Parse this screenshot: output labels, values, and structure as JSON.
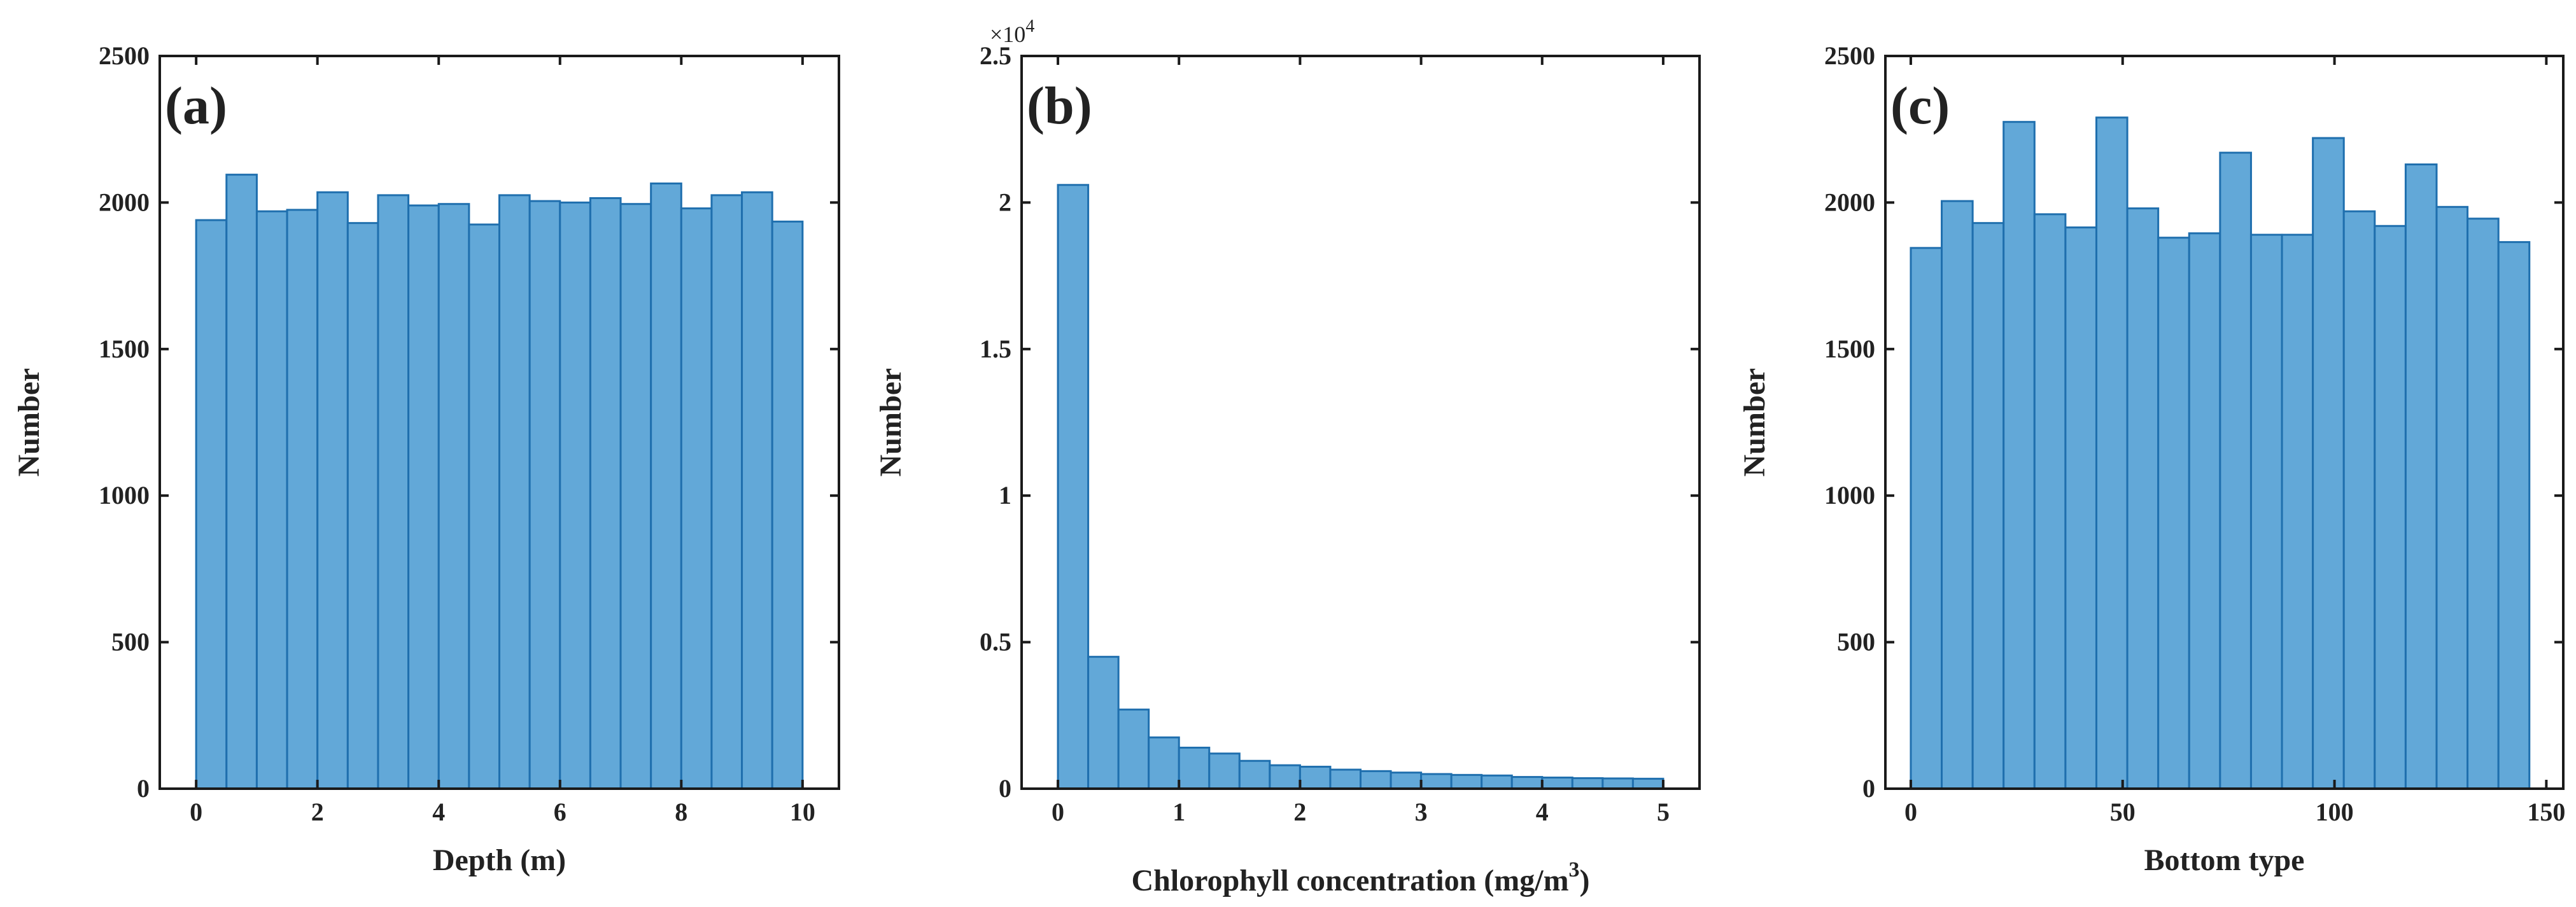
{
  "chart_data": [
    {
      "type": "bar",
      "panel_label": "(a)",
      "xlabel": "Depth (m)",
      "ylabel": "Number",
      "xlim": [
        -0.6,
        10.6
      ],
      "ylim": [
        0,
        2500
      ],
      "xticks": [
        0,
        2,
        4,
        6,
        8,
        10
      ],
      "xtick_labels": [
        "0",
        "2",
        "4",
        "6",
        "8",
        "10"
      ],
      "yticks": [
        0,
        500,
        1000,
        1500,
        2000,
        2500
      ],
      "ytick_labels": [
        "0",
        "500",
        "1000",
        "1500",
        "2000",
        "2500"
      ],
      "bin_edges": [
        0,
        0.5,
        1,
        1.5,
        2,
        2.5,
        3,
        3.5,
        4,
        4.5,
        5,
        5.5,
        6,
        6.5,
        7,
        7.5,
        8,
        8.5,
        9,
        9.5,
        10
      ],
      "values": [
        1940,
        2095,
        1970,
        1975,
        2035,
        1930,
        2025,
        1990,
        1995,
        1925,
        2025,
        2005,
        2000,
        2015,
        1995,
        2065,
        1980,
        2025,
        2035,
        1935
      ]
    },
    {
      "type": "bar",
      "panel_label": "(b)",
      "xlabel_main": "Chlorophyll concentration (mg/m",
      "xlabel_sup": "3",
      "xlabel_end": ")",
      "ylabel": "Number",
      "exponent_prefix": "×10",
      "exponent_power": "4",
      "scale": 10000,
      "xlim": [
        -0.3,
        5.3
      ],
      "ylim": [
        0,
        2.5
      ],
      "xticks": [
        0,
        1,
        2,
        3,
        4,
        5
      ],
      "xtick_labels": [
        "0",
        "1",
        "2",
        "3",
        "4",
        "5"
      ],
      "yticks": [
        0,
        0.5,
        1,
        1.5,
        2,
        2.5
      ],
      "ytick_labels": [
        "0",
        "0.5",
        "1",
        "1.5",
        "2",
        "2.5"
      ],
      "bin_edges": [
        0,
        0.25,
        0.5,
        0.75,
        1,
        1.25,
        1.5,
        1.75,
        2,
        2.25,
        2.5,
        2.75,
        3,
        3.25,
        3.5,
        3.75,
        4,
        4.25,
        4.5,
        4.75,
        5
      ],
      "values": [
        2.06,
        0.45,
        0.27,
        0.175,
        0.14,
        0.12,
        0.095,
        0.08,
        0.075,
        0.065,
        0.06,
        0.055,
        0.05,
        0.047,
        0.045,
        0.04,
        0.038,
        0.036,
        0.035,
        0.034
      ]
    },
    {
      "type": "bar",
      "panel_label": "(c)",
      "xlabel": "Bottom type",
      "ylabel": "Number",
      "xlim": [
        -6,
        154
      ],
      "ylim": [
        0,
        2500
      ],
      "xticks": [
        0,
        50,
        100,
        150
      ],
      "xtick_labels": [
        "0",
        "50",
        "100",
        "150"
      ],
      "yticks": [
        0,
        500,
        1000,
        1500,
        2000,
        2500
      ],
      "ytick_labels": [
        "0",
        "500",
        "1000",
        "1500",
        "2000",
        "2500"
      ],
      "bin_edges": [
        0,
        7.3,
        14.6,
        21.9,
        29.2,
        36.5,
        43.8,
        51.1,
        58.4,
        65.7,
        73,
        80.3,
        87.6,
        94.9,
        102.2,
        109.5,
        116.8,
        124.1,
        131.4,
        138.7,
        146
      ],
      "values": [
        1845,
        2005,
        1930,
        2275,
        1960,
        1915,
        2290,
        1980,
        1880,
        1895,
        2170,
        1890,
        1890,
        2220,
        1970,
        1920,
        2130,
        1985,
        1945,
        1865
      ]
    }
  ]
}
